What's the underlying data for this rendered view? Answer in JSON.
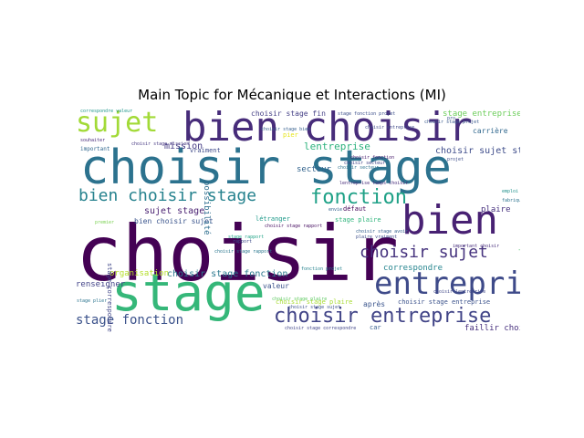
{
  "title": "Main Topic for Mécanique et Interactions (MI)",
  "words": [
    {
      "text": "choisir",
      "color": "#440154"
    },
    {
      "text": "choisir stage",
      "color": "#2c728e"
    },
    {
      "text": "stage",
      "color": "#35b779"
    },
    {
      "text": "bien choisir",
      "color": "#472c7a"
    },
    {
      "text": "bien",
      "color": "#482173"
    },
    {
      "text": "entreprise",
      "color": "#3e4a89"
    },
    {
      "text": "sujet",
      "color": "#a2da37"
    },
    {
      "text": "choisir entreprise",
      "color": "#414487"
    },
    {
      "text": "choisir sujet",
      "color": "#46337e"
    },
    {
      "text": "bien choisir stage",
      "color": "#26828e"
    },
    {
      "text": "fonction",
      "color": "#1fa187"
    },
    {
      "text": "stage fonction",
      "color": "#3b528b"
    },
    {
      "text": "lentreprise",
      "color": "#2db27d"
    },
    {
      "text": "choisir sujet stage",
      "color": "#3e4c8a"
    },
    {
      "text": "choisir stage fin",
      "color": "#433e85"
    },
    {
      "text": "mission",
      "color": "#443a83"
    },
    {
      "text": "secteur",
      "color": "#33638d"
    },
    {
      "text": "sujet stage",
      "color": "#481f70"
    },
    {
      "text": "correspondre",
      "color": "#25848e"
    },
    {
      "text": "choisir stage fonction",
      "color": "#2a788e"
    },
    {
      "text": "bien choisir sujet",
      "color": "#3a548c"
    },
    {
      "text": "renseigner",
      "color": "#414287"
    },
    {
      "text": "valeur",
      "color": "#3b528b"
    },
    {
      "text": "plaire",
      "color": "#46307e"
    },
    {
      "text": "carrière",
      "color": "#31688e"
    },
    {
      "text": "stage plaire",
      "color": "#2fb47c"
    },
    {
      "text": "létranger",
      "color": "#1f9a8a"
    },
    {
      "text": "défaut",
      "color": "#450457"
    },
    {
      "text": "pier",
      "color": "#e5e419"
    },
    {
      "text": "après",
      "color": "#3a548c"
    },
    {
      "text": "car",
      "color": "#365d8d"
    },
    {
      "text": "faillir choisir",
      "color": "#472f7d"
    },
    {
      "text": "stage entreprise",
      "color": "#6ccd5a"
    },
    {
      "text": "choisir stage plaire",
      "color": "#a8db34"
    },
    {
      "text": "choisir stage entreprise",
      "color": "#3b528b"
    },
    {
      "text": "organisation",
      "color": "#b5de2b"
    },
    {
      "text": "stage correspondre",
      "color": "#404688"
    },
    {
      "text": "possibilité",
      "color": "#2e6e8e"
    },
    {
      "text": "vraiment",
      "color": "#3e4989"
    },
    {
      "text": "important",
      "color": "#31678e"
    },
    {
      "text": "choisir stage mission",
      "color": "#453781"
    },
    {
      "text": "choisir stage bien",
      "color": "#355f8d"
    },
    {
      "text": "choisir stage rapport",
      "color": "#2a768e"
    },
    {
      "text": "choisir stage plaire",
      "color": "#5ec962"
    },
    {
      "text": "choisir fonction",
      "color": "#481b6d"
    },
    {
      "text": "choisir entreprise",
      "color": "#3f4889"
    },
    {
      "text": "choisir secteur",
      "color": "#2d718e"
    },
    {
      "text": "bien choisir entreprise",
      "color": "#4ec36b"
    },
    {
      "text": "projet",
      "color": "#3d4d8a"
    },
    {
      "text": "pro",
      "color": "#39568c"
    },
    {
      "text": "envie",
      "color": "#34618d"
    },
    {
      "text": "stage rapport",
      "color": "#20a386"
    },
    {
      "text": "rapport",
      "color": "#3e4a89"
    },
    {
      "text": "choisir stage sujet",
      "color": "#3b518b"
    },
    {
      "text": "correspondre valeur",
      "color": "#1f958b"
    },
    {
      "text": "souhaiter",
      "color": "#472a7a"
    },
    {
      "text": "emploi",
      "color": "#21918c"
    },
    {
      "text": "choisir stage projet",
      "color": "#38588c"
    },
    {
      "text": "choisir stage correspondre",
      "color": "#404588"
    },
    {
      "text": "stage fonction projet",
      "color": "#3c4f8a"
    },
    {
      "text": "choisir secteur",
      "color": "#404387"
    },
    {
      "text": "choisir lentreprise",
      "color": "#3f4788"
    },
    {
      "text": "important choisir",
      "color": "#472d7b"
    },
    {
      "text": "plaire vraiment",
      "color": "#3d4e8a"
    },
    {
      "text": "fonction projet",
      "color": "#26828e"
    },
    {
      "text": "premier",
      "color": "#7ad151"
    },
    {
      "text": "stage plier",
      "color": "#2b748e"
    },
    {
      "text": "fabrique",
      "color": "#2c738e"
    },
    {
      "text": "lentreprise temps choisir",
      "color": "#472c7a"
    },
    {
      "text": "choisir stage rapport",
      "color": "#470e61"
    },
    {
      "text": "choisir stage avoir",
      "color": "#35608d"
    }
  ]
}
